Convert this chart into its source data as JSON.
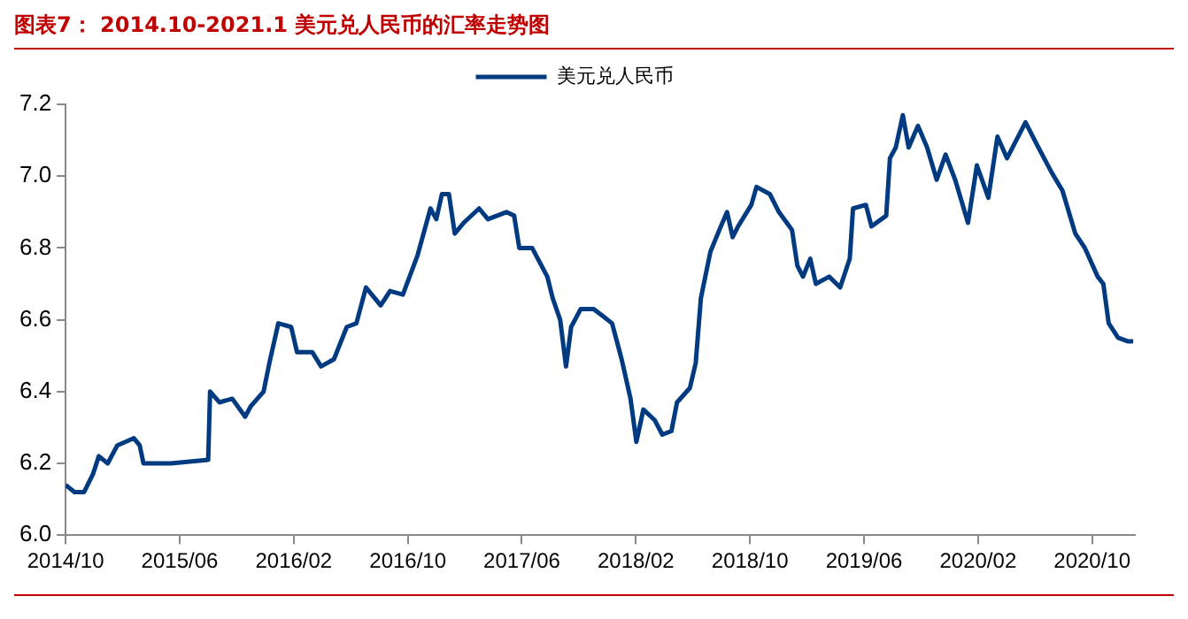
{
  "chart_data": {
    "type": "line",
    "title": "图表7：  2014.10-2021.1 美元兑人民币的汇率走势图",
    "x": [
      "2014-10-01",
      "2014-10-20",
      "2014-11-10",
      "2014-11-29",
      "2014-12-11",
      "2014-12-30",
      "2015-01-20",
      "2015-02-25",
      "2015-03-07",
      "2015-03-15",
      "2015-05-13",
      "2015-08-01",
      "2015-08-05",
      "2015-08-25",
      "2015-09-22",
      "2015-10-19",
      "2015-11-01",
      "2015-11-28",
      "2015-12-10",
      "2015-12-29",
      "2016-01-26",
      "2016-02-08",
      "2016-03-10",
      "2016-03-29",
      "2016-04-26",
      "2016-05-23",
      "2016-06-13",
      "2016-07-03",
      "2016-08-04",
      "2016-08-24",
      "2016-09-21",
      "2016-10-22",
      "2016-11-19",
      "2016-12-01",
      "2016-12-13",
      "2016-12-28",
      "2017-01-10",
      "2017-01-29",
      "2017-03-01",
      "2017-03-20",
      "2017-04-29",
      "2017-05-15",
      "2017-05-26",
      "2017-06-23",
      "2017-07-25",
      "2017-08-06",
      "2017-08-22",
      "2017-09-04",
      "2017-09-15",
      "2017-10-05",
      "2017-11-02",
      "2017-11-22",
      "2017-12-11",
      "2018-01-01",
      "2018-01-20",
      "2018-02-02",
      "2018-02-17",
      "2018-03-11",
      "2018-03-27",
      "2018-04-16",
      "2018-04-28",
      "2018-05-25",
      "2018-06-07",
      "2018-06-18",
      "2018-07-08",
      "2018-07-27",
      "2018-08-13",
      "2018-08-25",
      "2018-09-06",
      "2018-10-04",
      "2018-10-15",
      "2018-11-13",
      "2018-12-02",
      "2018-12-30",
      "2019-01-11",
      "2019-01-23",
      "2019-02-08",
      "2019-02-20",
      "2019-03-18",
      "2019-04-11",
      "2019-05-01",
      "2019-05-08",
      "2019-06-05",
      "2019-06-17",
      "2019-07-18",
      "2019-07-26",
      "2019-08-08",
      "2019-08-23",
      "2019-09-05",
      "2019-09-25",
      "2019-10-14",
      "2019-11-04",
      "2019-11-23",
      "2019-12-13",
      "2020-01-10",
      "2020-01-29",
      "2020-02-23",
      "2020-03-12",
      "2020-04-02",
      "2020-05-11",
      "2020-06-08",
      "2020-07-06",
      "2020-07-29",
      "2020-08-26",
      "2020-09-16",
      "2020-10-13",
      "2020-10-25",
      "2020-11-06",
      "2020-11-26",
      "2020-12-16",
      "2020-12-28"
    ],
    "series": [
      {
        "name": "美元兑人民币",
        "color": "#003a80",
        "values": [
          6.14,
          6.12,
          6.12,
          6.17,
          6.22,
          6.2,
          6.25,
          6.27,
          6.25,
          6.2,
          6.2,
          6.21,
          6.4,
          6.37,
          6.38,
          6.33,
          6.36,
          6.4,
          6.48,
          6.59,
          6.58,
          6.51,
          6.51,
          6.47,
          6.49,
          6.58,
          6.59,
          6.69,
          6.64,
          6.68,
          6.67,
          6.78,
          6.91,
          6.88,
          6.95,
          6.95,
          6.84,
          6.87,
          6.91,
          6.88,
          6.9,
          6.89,
          6.8,
          6.8,
          6.72,
          6.66,
          6.6,
          6.47,
          6.58,
          6.63,
          6.63,
          6.61,
          6.59,
          6.49,
          6.38,
          6.26,
          6.35,
          6.32,
          6.28,
          6.29,
          6.37,
          6.41,
          6.48,
          6.66,
          6.79,
          6.85,
          6.9,
          6.83,
          6.86,
          6.92,
          6.97,
          6.95,
          6.9,
          6.85,
          6.75,
          6.72,
          6.77,
          6.7,
          6.72,
          6.69,
          6.77,
          6.91,
          6.92,
          6.86,
          6.89,
          7.05,
          7.08,
          7.17,
          7.08,
          7.14,
          7.08,
          6.99,
          7.06,
          6.99,
          6.87,
          7.03,
          6.94,
          7.11,
          7.05,
          7.15,
          7.08,
          7.01,
          6.96,
          6.84,
          6.8,
          6.72,
          6.7,
          6.59,
          6.55,
          6.54,
          6.54
        ]
      }
    ],
    "xlim": [
      "2014-10-01",
      "2021-01-01"
    ],
    "xticks": [
      {
        "value": "2014-10",
        "label": "2014/10"
      },
      {
        "value": "2015-06",
        "label": "2015/06"
      },
      {
        "value": "2016-02",
        "label": "2016/02"
      },
      {
        "value": "2016-10",
        "label": "2016/10"
      },
      {
        "value": "2017-06",
        "label": "2017/06"
      },
      {
        "value": "2018-02",
        "label": "2018/02"
      },
      {
        "value": "2018-10",
        "label": "2018/10"
      },
      {
        "value": "2019-06",
        "label": "2019/06"
      },
      {
        "value": "2020-02",
        "label": "2020/02"
      },
      {
        "value": "2020-10",
        "label": "2020/10"
      }
    ],
    "ylim": [
      6.0,
      7.2
    ],
    "yticks": [
      {
        "value": 6.0,
        "label": "6.0"
      },
      {
        "value": 6.2,
        "label": "6.2"
      },
      {
        "value": 6.4,
        "label": "6.4"
      },
      {
        "value": 6.6,
        "label": "6.6"
      },
      {
        "value": 6.8,
        "label": "6.8"
      },
      {
        "value": 7.0,
        "label": "7.0"
      },
      {
        "value": 7.2,
        "label": "7.2"
      }
    ],
    "grid": false,
    "legend": "top",
    "marker": "none",
    "line_style": "solid"
  }
}
